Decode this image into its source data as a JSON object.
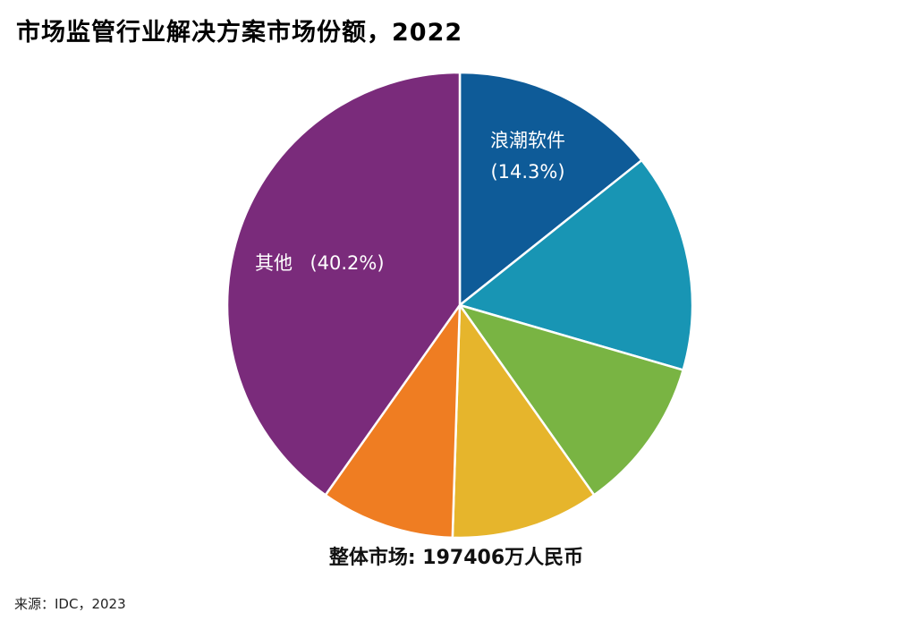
{
  "title": "市场监管行业解决方案市场份额，2022",
  "source": "来源：IDC，2023",
  "chart_data": {
    "type": "pie",
    "title": "市场监管行业解决方案市场份额，2022",
    "start_angle_deg": 0,
    "direction": "clockwise",
    "slices": [
      {
        "label": "浪潮软件",
        "value_label": "(14.3%)",
        "value": 14.3,
        "color": "#0e5b98"
      },
      {
        "label": "",
        "value_label": "",
        "value": 15.2,
        "color": "#1895b4"
      },
      {
        "label": "",
        "value_label": "",
        "value": 10.7,
        "color": "#79b443"
      },
      {
        "label": "",
        "value_label": "",
        "value": 10.3,
        "color": "#e6b52c"
      },
      {
        "label": "",
        "value_label": "",
        "value": 9.3,
        "color": "#ef7d22"
      },
      {
        "label": "其他",
        "value_label": "(40.2%)",
        "value": 40.2,
        "color": "#7a2b7b"
      }
    ],
    "total_label": "整体市场: 197406万人民币"
  }
}
